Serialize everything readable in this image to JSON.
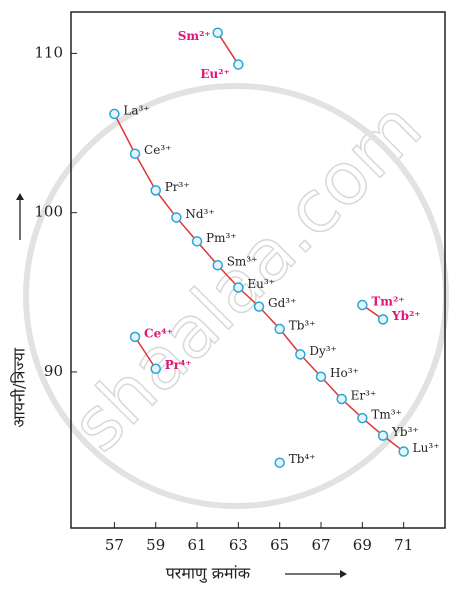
{
  "chart_data": {
    "type": "line",
    "x_label": "परमाणु क्रमांक",
    "y_label": "आयनी/त्रिज्या",
    "watermark": "shaalaa.com",
    "xlim": [
      54.9,
      73
    ],
    "xticks": [
      57,
      59,
      61,
      63,
      65,
      67,
      69,
      71
    ],
    "ylim": [
      80.2,
      112.6
    ],
    "yticks": [
      90,
      100,
      110
    ],
    "line_color": "#e03535",
    "marker_fill": "#e4f5fb",
    "marker_stroke": "#2aa5d5",
    "series": [
      {
        "color": "#222222",
        "x": [
          57,
          58,
          59,
          60,
          61,
          62,
          63,
          64,
          65,
          66,
          67,
          68,
          69,
          70,
          71
        ],
        "values": [
          106.2,
          103.7,
          101.4,
          99.7,
          98.2,
          96.7,
          95.3,
          94.1,
          92.7,
          91.1,
          89.7,
          88.3,
          87.1,
          86.0,
          85.0
        ],
        "labels": [
          "La³⁺",
          "Ce³⁺",
          "Pr³⁺",
          "Nd³⁺",
          "Pm³⁺",
          "Sm³⁺",
          "Eu³⁺",
          "Gd³⁺",
          "Tb³⁺",
          "Dy³⁺",
          "Ho³⁺",
          "Er³⁺",
          "Tm³⁺",
          "Yb³⁺",
          "Lu³⁺"
        ]
      },
      {
        "color": "#e0147a",
        "x": [
          62,
          63
        ],
        "values": [
          111.3,
          109.3
        ],
        "labels": [
          "Sm²⁺",
          "Eu²⁺"
        ]
      },
      {
        "color": "#e0147a",
        "x": [
          69,
          70
        ],
        "values": [
          94.2,
          93.3
        ],
        "labels": [
          "Tm²⁺",
          "Yb²⁺"
        ]
      },
      {
        "color": "#e0147a",
        "x": [
          58,
          59
        ],
        "values": [
          92.2,
          90.2
        ],
        "labels": [
          "Ce⁴⁺",
          "Pr⁴⁺"
        ]
      },
      {
        "color": "#222222",
        "x": [
          65
        ],
        "values": [
          84.3
        ],
        "labels": [
          "Tb⁴⁺"
        ]
      }
    ]
  }
}
